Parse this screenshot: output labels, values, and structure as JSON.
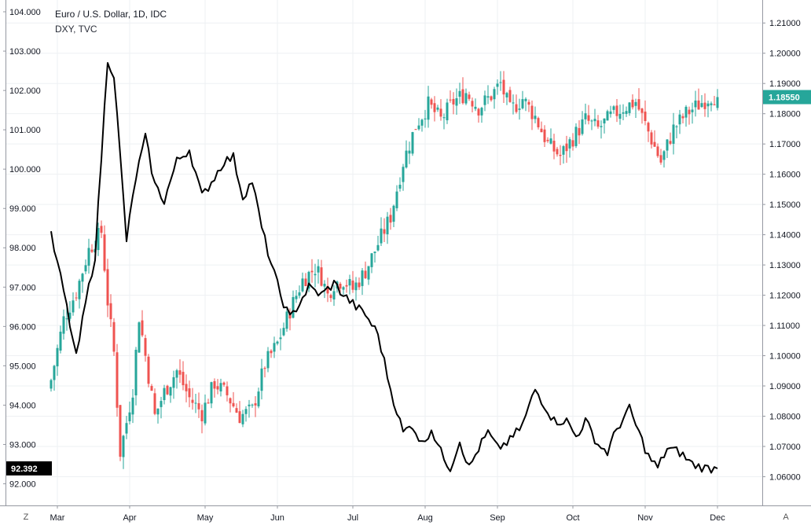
{
  "legend": {
    "main": "Euro / U.S. Dollar, 1D, IDC",
    "sub": "DXY, TVC"
  },
  "corner_left": "Z",
  "corner_right": "A",
  "colors": {
    "up": "#26a69a",
    "down": "#ef5350",
    "dxy_line": "#000000",
    "grid": "#eef0f3",
    "axis": "#9598a1",
    "eur_badge": "#26a69a",
    "dxy_badge": "#000000"
  },
  "chart_data": {
    "type": "line",
    "x_axis_labels": [
      "Mar",
      "Apr",
      "May",
      "Jun",
      "Jul",
      "Aug",
      "Sep",
      "Oct",
      "Nov",
      "Dec"
    ],
    "left_axis": {
      "series": "DXY, TVC",
      "ticks": [
        "104.000",
        "103.000",
        "102.000",
        "101.000",
        "100.000",
        "99.000",
        "98.000",
        "97.000",
        "96.000",
        "95.000",
        "94.000",
        "93.000",
        "92.000"
      ],
      "range": [
        91.45,
        104.3
      ],
      "last_value": "92.392"
    },
    "right_axis": {
      "series": "Euro / U.S. Dollar, 1D, IDC",
      "ticks": [
        "1.21000",
        "1.20000",
        "1.19000",
        "1.18000",
        "1.17000",
        "1.16000",
        "1.15000",
        "1.14000",
        "1.13000",
        "1.12000",
        "1.11000",
        "1.10000",
        "1.09000",
        "1.08000",
        "1.07000",
        "1.06000"
      ],
      "range": [
        1.0505,
        1.2176
      ],
      "last_value": "1.18550"
    },
    "eurusd_close_anchors": [
      [
        0,
        1.092
      ],
      [
        4,
        1.112
      ],
      [
        8,
        1.121
      ],
      [
        12,
        1.135
      ],
      [
        16,
        1.141
      ],
      [
        18,
        1.118
      ],
      [
        20,
        1.101
      ],
      [
        22,
        1.068
      ],
      [
        24,
        1.078
      ],
      [
        26,
        1.089
      ],
      [
        28,
        1.113
      ],
      [
        30,
        1.1
      ],
      [
        33,
        1.08
      ],
      [
        36,
        1.088
      ],
      [
        40,
        1.095
      ],
      [
        44,
        1.086
      ],
      [
        48,
        1.081
      ],
      [
        52,
        1.091
      ],
      [
        56,
        1.087
      ],
      [
        60,
        1.08
      ],
      [
        64,
        1.082
      ],
      [
        68,
        1.097
      ],
      [
        72,
        1.104
      ],
      [
        76,
        1.115
      ],
      [
        80,
        1.125
      ],
      [
        84,
        1.129
      ],
      [
        86,
        1.126
      ],
      [
        88,
        1.12
      ],
      [
        90,
        1.124
      ],
      [
        93,
        1.125
      ],
      [
        96,
        1.122
      ],
      [
        100,
        1.128
      ],
      [
        104,
        1.137
      ],
      [
        108,
        1.146
      ],
      [
        112,
        1.164
      ],
      [
        116,
        1.176
      ],
      [
        120,
        1.183
      ],
      [
        124,
        1.178
      ],
      [
        128,
        1.184
      ],
      [
        132,
        1.187
      ],
      [
        136,
        1.182
      ],
      [
        140,
        1.186
      ],
      [
        143,
        1.19
      ],
      [
        146,
        1.181
      ],
      [
        150,
        1.185
      ],
      [
        154,
        1.179
      ],
      [
        158,
        1.17
      ],
      [
        162,
        1.166
      ],
      [
        166,
        1.172
      ],
      [
        170,
        1.178
      ],
      [
        174,
        1.175
      ],
      [
        178,
        1.179
      ],
      [
        182,
        1.182
      ],
      [
        186,
        1.184
      ],
      [
        190,
        1.174
      ],
      [
        194,
        1.164
      ],
      [
        198,
        1.175
      ],
      [
        202,
        1.18
      ],
      [
        206,
        1.183
      ],
      [
        210,
        1.186
      ],
      [
        212,
        1.1855
      ]
    ],
    "dxy_close_anchors": [
      [
        0,
        98.3
      ],
      [
        4,
        96.9
      ],
      [
        8,
        95.2
      ],
      [
        11,
        96.6
      ],
      [
        14,
        97.8
      ],
      [
        18,
        102.8
      ],
      [
        20,
        102.4
      ],
      [
        22,
        100.3
      ],
      [
        24,
        98.2
      ],
      [
        27,
        99.8
      ],
      [
        30,
        100.8
      ],
      [
        33,
        99.6
      ],
      [
        36,
        99.2
      ],
      [
        40,
        100.2
      ],
      [
        44,
        100.5
      ],
      [
        48,
        99.3
      ],
      [
        52,
        99.8
      ],
      [
        55,
        100.2
      ],
      [
        58,
        100.3
      ],
      [
        61,
        99.3
      ],
      [
        64,
        99.7
      ],
      [
        67,
        98.5
      ],
      [
        70,
        97.6
      ],
      [
        73,
        96.8
      ],
      [
        76,
        96.2
      ],
      [
        79,
        96.6
      ],
      [
        82,
        97.0
      ],
      [
        86,
        96.8
      ],
      [
        90,
        97.1
      ],
      [
        93,
        96.8
      ],
      [
        97,
        96.5
      ],
      [
        100,
        96.3
      ],
      [
        104,
        95.8
      ],
      [
        108,
        94.4
      ],
      [
        112,
        93.3
      ],
      [
        115,
        93.5
      ],
      [
        118,
        93.0
      ],
      [
        121,
        93.4
      ],
      [
        124,
        92.8
      ],
      [
        127,
        92.4
      ],
      [
        130,
        93.1
      ],
      [
        133,
        92.4
      ],
      [
        136,
        92.9
      ],
      [
        139,
        93.3
      ],
      [
        142,
        92.9
      ],
      [
        146,
        93.1
      ],
      [
        150,
        93.5
      ],
      [
        154,
        94.4
      ],
      [
        157,
        94.0
      ],
      [
        160,
        93.6
      ],
      [
        164,
        93.6
      ],
      [
        167,
        93.2
      ],
      [
        170,
        93.6
      ],
      [
        174,
        93.0
      ],
      [
        177,
        92.8
      ],
      [
        180,
        93.4
      ],
      [
        184,
        93.9
      ],
      [
        187,
        93.3
      ],
      [
        190,
        92.7
      ],
      [
        193,
        92.4
      ],
      [
        196,
        92.9
      ],
      [
        200,
        92.8
      ],
      [
        204,
        92.5
      ],
      [
        208,
        92.4
      ],
      [
        212,
        92.39
      ]
    ]
  }
}
